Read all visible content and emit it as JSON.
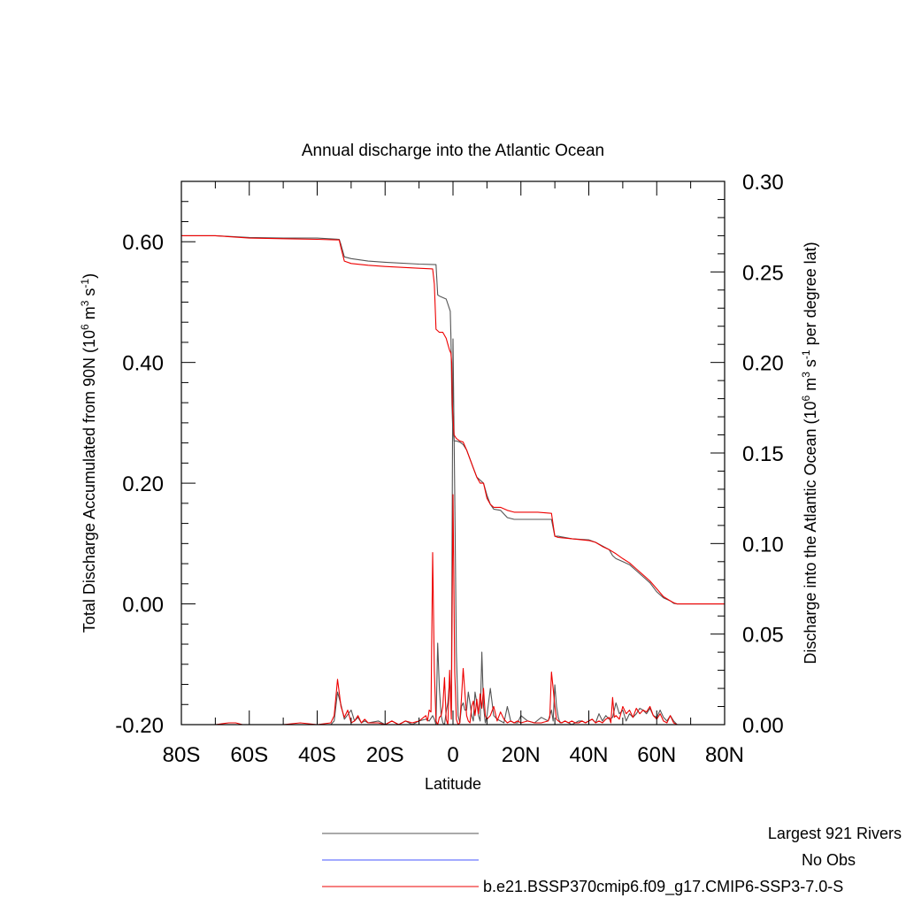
{
  "chart_data": {
    "type": "line",
    "title": "Annual discharge into the Atlantic Ocean",
    "xlabel": "Latitude",
    "ylabel_left": "Total Discharge Accumulated from 90N (10^6 m^3 s^-1)",
    "ylabel_right": "Discharge into the Atlantic Ocean (10^6 m^3 s^-1 per degree lat)",
    "xlim": [
      -80,
      80
    ],
    "ylim_left": [
      -0.2,
      0.7
    ],
    "ylim_right": [
      0,
      0.3
    ],
    "x_ticks": [
      -80,
      -60,
      -40,
      -20,
      0,
      20,
      40,
      60,
      80
    ],
    "x_tick_labels": [
      "80S",
      "60S",
      "40S",
      "20S",
      "0",
      "20N",
      "40N",
      "60N",
      "80N"
    ],
    "y_left_ticks": [
      -0.2,
      0.0,
      0.2,
      0.4,
      0.6
    ],
    "y_left_tick_labels": [
      "-0.20",
      "0.00",
      "0.20",
      "0.40",
      "0.60"
    ],
    "y_right_ticks": [
      0,
      0.05,
      0.1,
      0.15,
      0.2,
      0.25,
      0.3
    ],
    "y_right_tick_labels": [
      "0.00",
      "0.05",
      "0.10",
      "0.15",
      "0.20",
      "0.25",
      "0.30"
    ],
    "legend_position": "bottom",
    "series": [
      {
        "name": "Largest 921 Rivers",
        "axis": "left",
        "color": "#555555",
        "x": [
          -80,
          -70,
          -60,
          -50,
          -40,
          -33.5,
          -33,
          -32,
          -30,
          -25,
          -20,
          -10,
          -5,
          -4.5,
          -4,
          -2,
          -0.8,
          -0.6,
          -0.3,
          -0.1,
          0.3,
          1,
          2,
          3,
          4,
          5,
          6,
          7,
          8,
          9,
          10,
          11,
          12,
          14,
          16,
          18,
          20,
          25,
          29,
          30,
          31,
          35,
          40,
          42,
          44,
          46,
          47,
          48,
          50,
          52,
          54,
          56,
          58,
          60,
          62,
          64,
          65,
          66,
          70,
          80
        ],
        "y": [
          0.61,
          0.61,
          0.607,
          0.606,
          0.606,
          0.604,
          0.595,
          0.575,
          0.572,
          0.568,
          0.566,
          0.563,
          0.562,
          0.512,
          0.51,
          0.505,
          0.485,
          0.44,
          0.33,
          0.295,
          0.27,
          0.27,
          0.268,
          0.264,
          0.255,
          0.24,
          0.225,
          0.21,
          0.205,
          0.2,
          0.18,
          0.165,
          0.157,
          0.155,
          0.143,
          0.14,
          0.14,
          0.14,
          0.14,
          0.112,
          0.112,
          0.108,
          0.106,
          0.102,
          0.096,
          0.09,
          0.08,
          0.075,
          0.07,
          0.065,
          0.055,
          0.045,
          0.035,
          0.02,
          0.01,
          0.005,
          0.001,
          0,
          0,
          0
        ]
      },
      {
        "name": "No Obs",
        "axis": "left",
        "color": "#4455ff",
        "x": [],
        "y": []
      },
      {
        "name": "b.e21.BSSP370cmip6.f09_g17.CMIP6-SSP3-7.0-S",
        "axis": "left",
        "color": "#ee0000",
        "x": [
          -80,
          -70,
          -60,
          -50,
          -40,
          -33.5,
          -33,
          -32,
          -30,
          -25,
          -20,
          -10,
          -6,
          -5.5,
          -5,
          -4,
          -3,
          -2,
          -1.5,
          -1,
          -0.6,
          -0.4,
          -0.2,
          0.3,
          1,
          2,
          3,
          4,
          5,
          6,
          7,
          8,
          9,
          10,
          11,
          12,
          14,
          16,
          18,
          20,
          25,
          29,
          30,
          31,
          35,
          40,
          42,
          44,
          46,
          48,
          50,
          52,
          54,
          56,
          58,
          60,
          62,
          64,
          65,
          66,
          70,
          80
        ],
        "y": [
          0.61,
          0.61,
          0.606,
          0.605,
          0.604,
          0.603,
          0.59,
          0.568,
          0.564,
          0.561,
          0.559,
          0.556,
          0.555,
          0.53,
          0.455,
          0.45,
          0.45,
          0.44,
          0.43,
          0.42,
          0.415,
          0.4,
          0.33,
          0.28,
          0.274,
          0.27,
          0.268,
          0.255,
          0.24,
          0.225,
          0.21,
          0.2,
          0.2,
          0.175,
          0.165,
          0.16,
          0.16,
          0.155,
          0.152,
          0.152,
          0.152,
          0.15,
          0.112,
          0.11,
          0.108,
          0.105,
          0.102,
          0.095,
          0.09,
          0.083,
          0.075,
          0.068,
          0.058,
          0.048,
          0.038,
          0.025,
          0.012,
          0.005,
          0.002,
          0,
          0,
          0
        ]
      },
      {
        "name": "Largest 921 Rivers",
        "axis": "right",
        "color": "#555555",
        "x": [
          -80,
          -36,
          -35,
          -34,
          -33,
          -32,
          -30,
          -29,
          -28,
          -27,
          -26,
          -25,
          -22,
          -20,
          -18,
          -16,
          -14,
          -12,
          -10,
          -8,
          -7,
          -6,
          -5.5,
          -5,
          -4.5,
          -4,
          -3.5,
          -3,
          -2.5,
          -2,
          -1.5,
          -1,
          -0.5,
          0,
          0.5,
          1,
          1.5,
          2,
          2.5,
          3,
          3.5,
          4,
          4.5,
          5,
          5.5,
          6,
          6.5,
          7,
          7.5,
          8,
          8.5,
          9,
          9.5,
          10,
          11,
          12,
          13,
          14,
          15,
          16,
          17,
          18,
          19,
          20,
          22,
          24,
          26,
          28,
          29,
          29.5,
          30,
          30.5,
          31,
          31.5,
          32,
          33,
          34,
          35,
          36,
          37,
          38,
          39,
          40,
          41,
          42,
          43,
          44,
          45,
          46,
          47,
          48,
          49,
          50,
          51,
          52,
          53,
          54,
          55,
          56,
          57,
          58,
          59,
          60,
          61,
          62,
          63,
          64,
          65,
          66,
          70,
          75,
          80
        ],
        "y": [
          0,
          0,
          0.002,
          0.018,
          0.011,
          0.003,
          0.008,
          0.002,
          0.004,
          0.001,
          0.002,
          0.001,
          0.002,
          0,
          0.002,
          0,
          0.002,
          0,
          0.002,
          0.003,
          0.002,
          0.005,
          0.003,
          0,
          0.045,
          0.02,
          0.005,
          0.001,
          0,
          0.007,
          0.012,
          0.025,
          0.007,
          0.213,
          0.13,
          0.04,
          0.005,
          0.001,
          0.01,
          0.012,
          0.008,
          0.008,
          0.018,
          0.012,
          0.005,
          0.002,
          0.018,
          0.012,
          0.005,
          0.002,
          0.04,
          0.01,
          0.001,
          0.005,
          0.02,
          0.005,
          0.003,
          0.002,
          0.001,
          0.01,
          0.002,
          0.001,
          0.001,
          0.005,
          0.002,
          0.001,
          0.004,
          0.002,
          0.008,
          0.002,
          0.022,
          0.01,
          0.004,
          0.001,
          0.001,
          0.002,
          0.001,
          0,
          0.001,
          0.002,
          0.002,
          0.001,
          0.002,
          0.003,
          0.001,
          0.006,
          0.002,
          0.005,
          0.003,
          0.004,
          0.012,
          0.006,
          0.008,
          0.002,
          0.006,
          0.004,
          0.006,
          0.009,
          0.008,
          0.006,
          0.009,
          0.005,
          0.004,
          0.008,
          0.004,
          0.002,
          0.005,
          0.002,
          0,
          0,
          0,
          0
        ]
      },
      {
        "name": "b.e21.BSSP370cmip6.f09_g17.CMIP6-SSP3-7.0-S",
        "axis": "right",
        "color": "#ee0000",
        "x": [
          -80,
          -70,
          -66,
          -64,
          -62,
          -50,
          -45,
          -40,
          -36,
          -35,
          -34,
          -33,
          -32,
          -31,
          -30,
          -29,
          -28,
          -27,
          -26,
          -25,
          -22,
          -20,
          -18,
          -16,
          -14,
          -12,
          -10,
          -8,
          -7.5,
          -7,
          -6.5,
          -6,
          -5.5,
          -5,
          -4.5,
          -4,
          -3.5,
          -3,
          -2.5,
          -2,
          -1.5,
          -1,
          -0.5,
          0,
          0.5,
          1,
          1.5,
          2,
          2.5,
          3,
          3.5,
          4,
          4.5,
          5,
          5.5,
          6,
          6.5,
          7,
          7.5,
          8,
          8.5,
          9,
          9.5,
          10,
          11,
          12,
          13,
          14,
          15,
          16,
          17,
          18,
          19,
          20,
          22,
          24,
          26,
          28,
          28.5,
          29,
          29.5,
          30,
          30.5,
          31,
          32,
          33,
          34,
          35,
          36,
          37,
          38,
          39,
          40,
          41,
          42,
          43,
          44,
          45,
          46,
          46.5,
          47,
          47.5,
          48,
          49,
          50,
          51,
          52,
          53,
          54,
          55,
          56,
          57,
          58,
          59,
          60,
          61,
          62,
          63,
          64,
          65,
          66,
          70,
          75,
          80
        ],
        "y": [
          0,
          0,
          0.001,
          0.001,
          0,
          0,
          0.001,
          0,
          0.001,
          0.005,
          0.025,
          0.01,
          0.004,
          0.008,
          0.001,
          0.002,
          0.005,
          0.001,
          0.003,
          0.001,
          0.001,
          0,
          0.002,
          0,
          0.002,
          0.001,
          0.002,
          0.005,
          0.002,
          0.008,
          0.007,
          0.095,
          0.03,
          0.002,
          0,
          0.004,
          0.005,
          0.01,
          0.026,
          0.003,
          0,
          0.03,
          0.003,
          0.127,
          0.03,
          0.003,
          0,
          0.001,
          0.015,
          0.031,
          0.018,
          0.005,
          0.002,
          0.001,
          0.01,
          0.013,
          0.005,
          0.014,
          0.006,
          0.017,
          0.009,
          0.02,
          0.005,
          0.003,
          0.005,
          0.01,
          0.002,
          0.007,
          0.003,
          0.001,
          0.002,
          0.001,
          0.002,
          0.001,
          0.002,
          0.001,
          0.001,
          0.002,
          0.004,
          0.029,
          0.02,
          0.01,
          0.003,
          0.002,
          0.001,
          0.002,
          0.001,
          0.002,
          0.001,
          0.001,
          0.002,
          0.001,
          0.002,
          0.003,
          0.001,
          0.002,
          0.001,
          0.003,
          0.004,
          0.001,
          0.015,
          0.004,
          0.005,
          0.003,
          0.01,
          0.006,
          0.008,
          0.004,
          0.009,
          0.006,
          0.008,
          0.007,
          0.01,
          0.005,
          0.003,
          0.006,
          0.002,
          0.001,
          0.005,
          0.001,
          0,
          0,
          0,
          0
        ]
      }
    ]
  }
}
